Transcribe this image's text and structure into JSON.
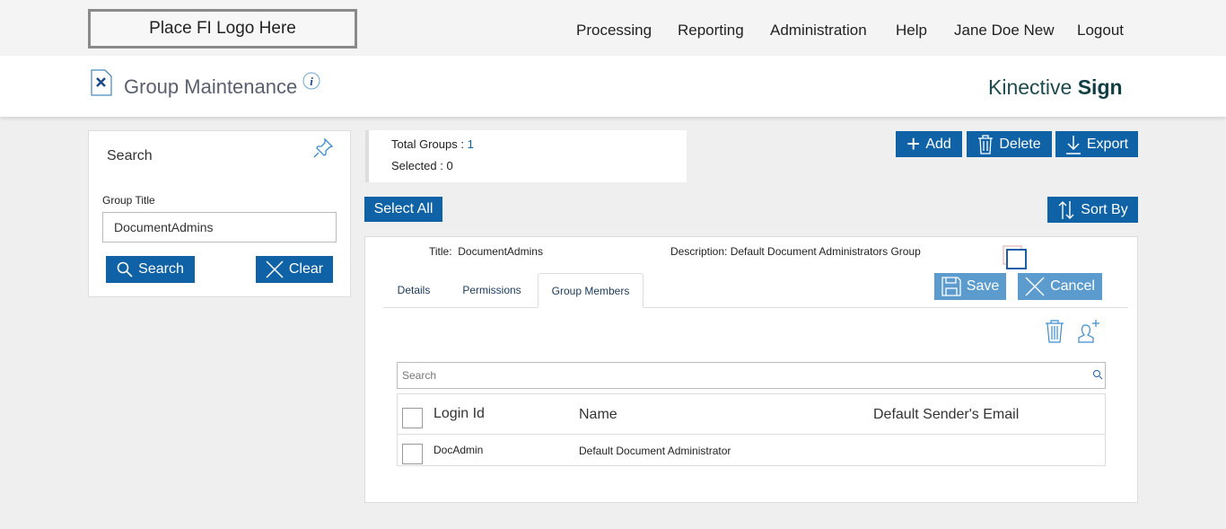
{
  "logo": "Place FI Logo Here",
  "nav": [
    "Processing",
    "Reporting",
    "Administration",
    "Help",
    "Jane Doe New",
    "Logout"
  ],
  "header": {
    "title": "Group Maintenance",
    "brand_light": "Kinective",
    "brand_bold": "Sign"
  },
  "search_panel": {
    "heading": "Search",
    "field_label": "Group Title",
    "field_value": "DocumentAdmins",
    "search_label": "Search",
    "clear_label": "Clear"
  },
  "summary": {
    "total_label": "Total Groups :",
    "total_value": "1",
    "selected_label": "Selected :",
    "selected_value": "0"
  },
  "toolbar": {
    "add": "Add",
    "delete": "Delete",
    "export": "Export",
    "select_all": "Select All",
    "sort_by": "Sort By"
  },
  "group": {
    "title_label": "Title:",
    "title_value": "DocumentAdmins",
    "desc_label": "Description:",
    "desc_value": "Default Document Administrators Group",
    "save": "Save",
    "cancel": "Cancel",
    "tabs": [
      "Details",
      "Permissions",
      "Group Members"
    ],
    "active_tab": "Group Members",
    "members_search_placeholder": "Search",
    "columns": [
      "Login Id",
      "Name",
      "Default Sender's Email"
    ],
    "rows": [
      {
        "login": "DocAdmin",
        "name": "Default Document Administrator",
        "email": ""
      }
    ]
  },
  "colors": {
    "primary": "#0f62a5",
    "disabled": "#5b9bce"
  }
}
